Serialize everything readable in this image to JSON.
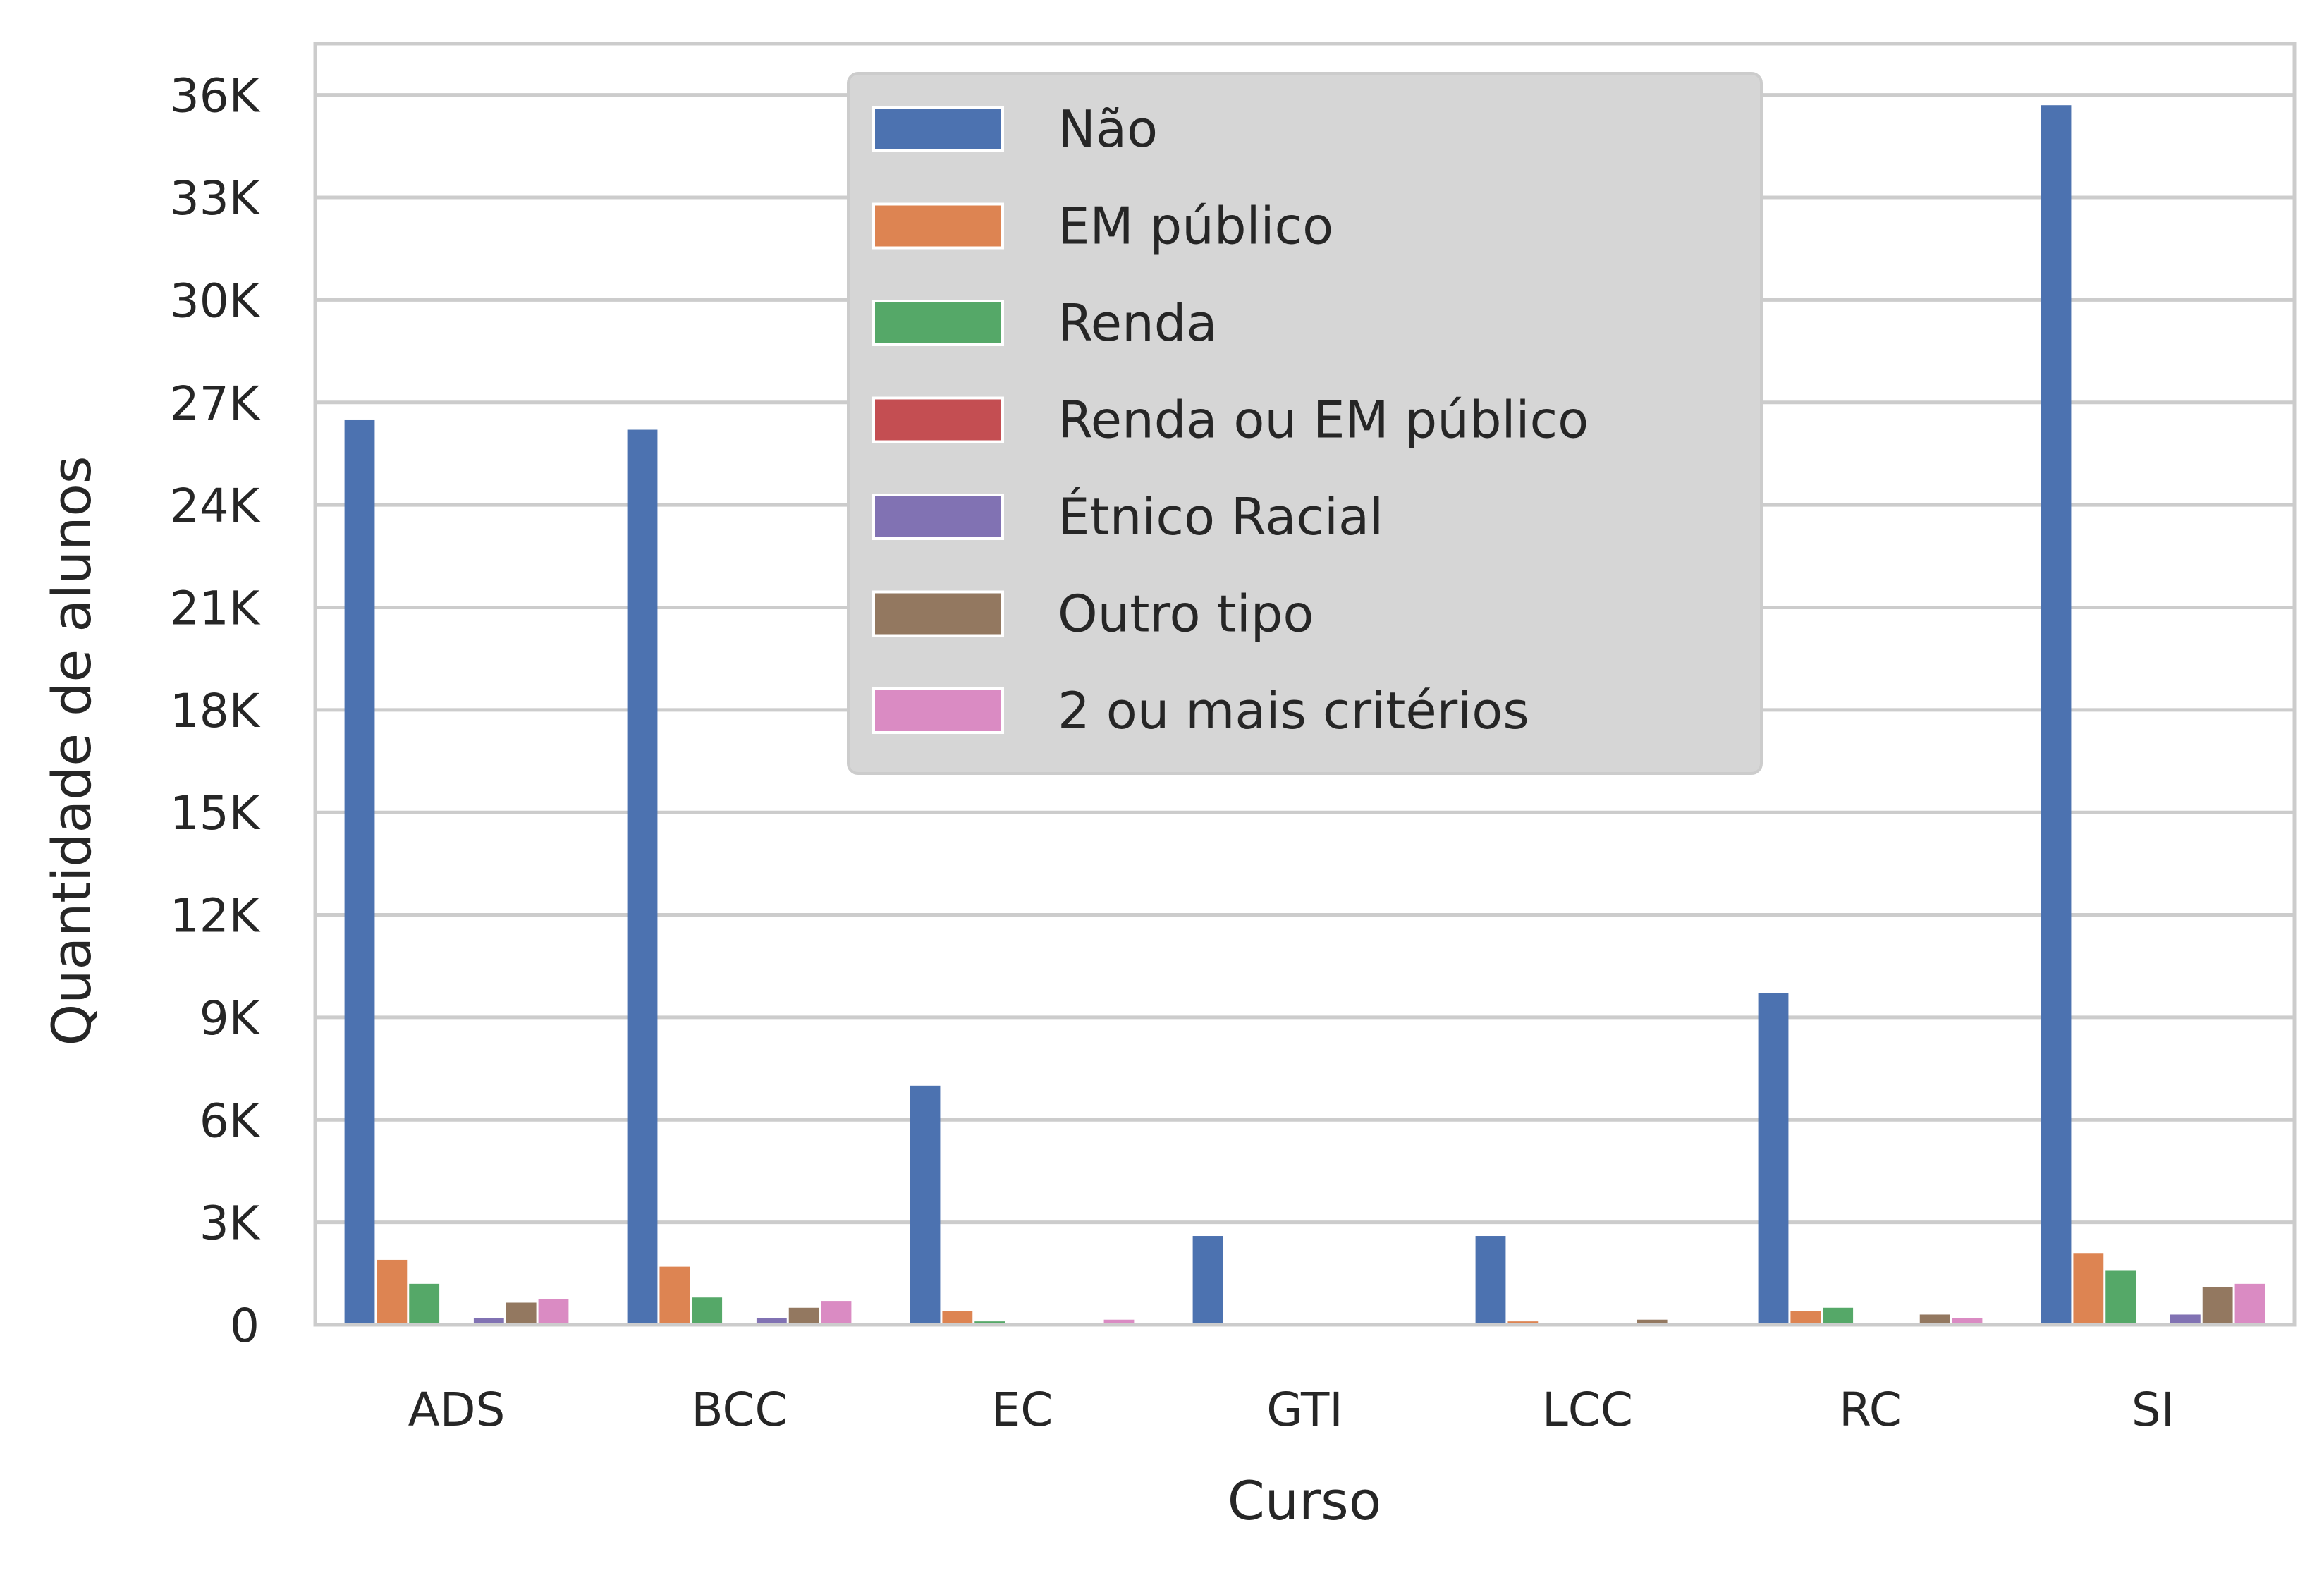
{
  "chart_data": {
    "type": "bar",
    "xlabel": "Curso",
    "ylabel": "Quantidade de alunos",
    "ylim": [
      0,
      37500
    ],
    "y_ticks": [
      0,
      3000,
      6000,
      9000,
      12000,
      15000,
      18000,
      21000,
      24000,
      27000,
      30000,
      33000,
      36000
    ],
    "y_tick_labels": [
      "0",
      "3K",
      "6K",
      "9K",
      "12K",
      "15K",
      "18K",
      "21K",
      "24K",
      "27K",
      "30K",
      "33K",
      "36K"
    ],
    "grid": "horizontal",
    "legend_position": "top-center",
    "categories": [
      "ADS",
      "BCC",
      "EC",
      "GTI",
      "LCC",
      "RC",
      "SI"
    ],
    "series": [
      {
        "name": "Não",
        "color": "#4c72b0",
        "values": [
          26500,
          26200,
          7000,
          2600,
          2600,
          9700,
          35700
        ]
      },
      {
        "name": "EM público",
        "color": "#dd8452",
        "values": [
          1900,
          1700,
          400,
          0,
          100,
          400,
          2100
        ]
      },
      {
        "name": "Renda",
        "color": "#55a868",
        "values": [
          1200,
          800,
          100,
          50,
          0,
          500,
          1600
        ]
      },
      {
        "name": "Renda ou EM público",
        "color": "#c44e52",
        "values": [
          0,
          0,
          0,
          0,
          0,
          0,
          0
        ]
      },
      {
        "name": "Étnico Racial",
        "color": "#8172b3",
        "values": [
          200,
          200,
          0,
          0,
          0,
          0,
          300
        ]
      },
      {
        "name": "Outro tipo",
        "color": "#937860",
        "values": [
          650,
          500,
          0,
          0,
          150,
          300,
          1100
        ]
      },
      {
        "name": "2 ou mais critérios",
        "color": "#da8bc3",
        "values": [
          750,
          700,
          150,
          0,
          0,
          200,
          1200
        ]
      }
    ]
  }
}
